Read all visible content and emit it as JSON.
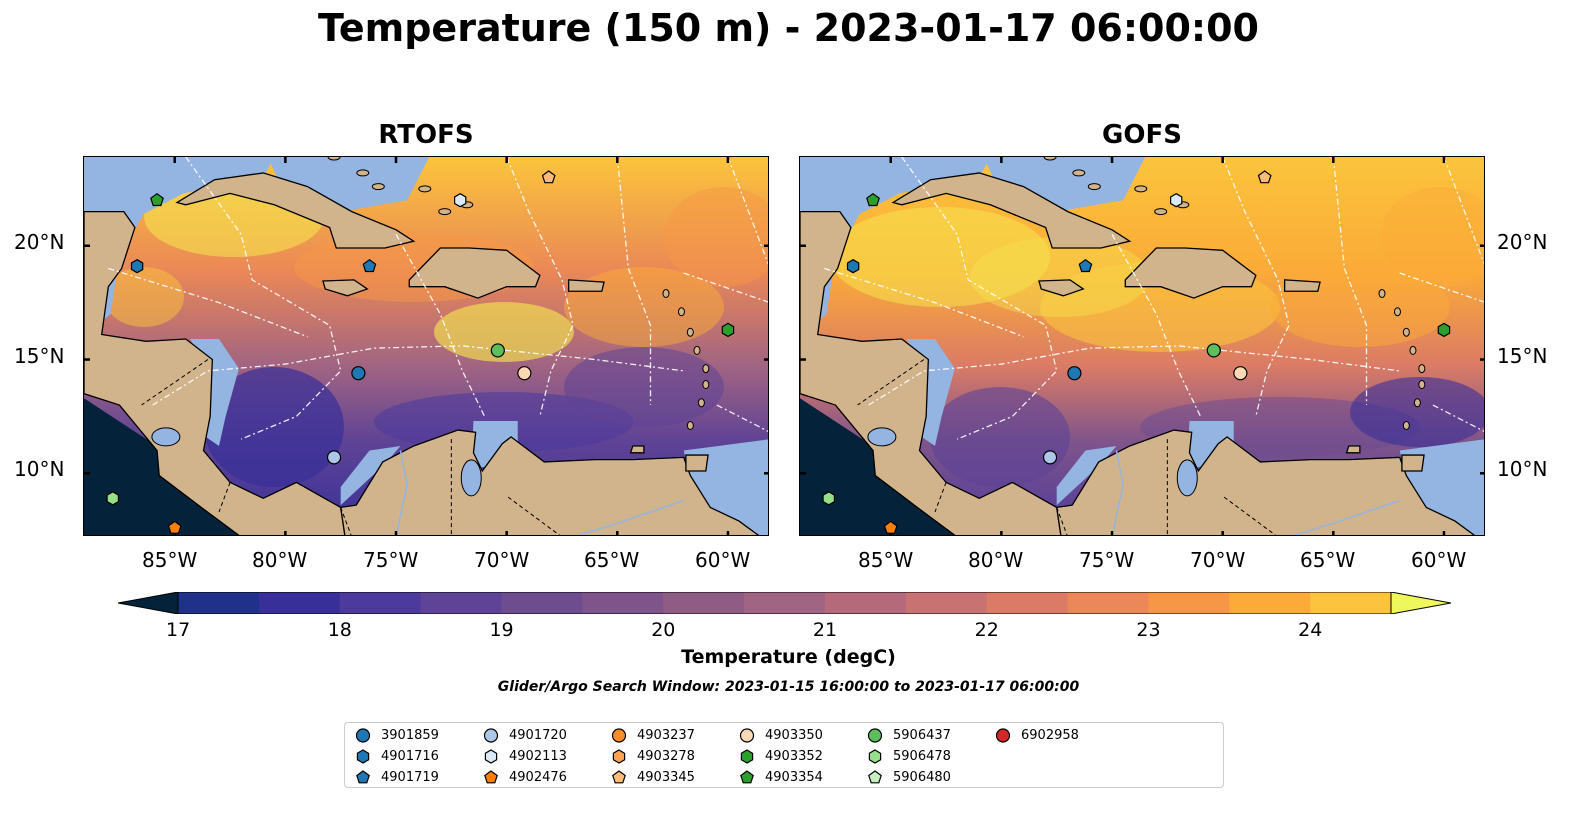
{
  "figure": {
    "title": "Temperature (150 m) - 2023-01-17 06:00:00",
    "panels": [
      {
        "title": "RTOFS"
      },
      {
        "title": "GOFS"
      }
    ],
    "lon_ticks": [
      "85°W",
      "80°W",
      "75°W",
      "70°W",
      "65°W",
      "60°W"
    ],
    "lat_ticks": [
      "20°N",
      "15°N",
      "10°N"
    ],
    "colorbar": {
      "label": "Temperature (degC)",
      "tick_labels": [
        "17",
        "18",
        "19",
        "20",
        "21",
        "22",
        "23",
        "24"
      ],
      "min": 17,
      "max": 24.5,
      "step": 0.5,
      "extend": "both",
      "colormap": "thermal",
      "colors": [
        "#04233a",
        "#0e2b5c",
        "#1f3189",
        "#382f99",
        "#4d3a9d",
        "#5e4396",
        "#6e4c90",
        "#7e548b",
        "#8f5c86",
        "#a16482",
        "#b56a7b",
        "#c97272",
        "#da7b66",
        "#ea8857",
        "#f59746",
        "#fbab38",
        "#fbc43c",
        "#f5e34e",
        "#eef85c"
      ],
      "extend_low_color": "#04233a",
      "extend_high_color": "#eef85c"
    },
    "search_window": "Glider/Argo Search Window: 2023-01-15 16:00:00 to 2023-01-17 06:00:00",
    "map_colors": {
      "land": "#d1b48c",
      "shelf_water": "#94b4e1",
      "coast": "#000000",
      "eez_lines": "#ffffff"
    },
    "legend": [
      {
        "id": "3901859",
        "marker": "circle",
        "color": "#1f77b4"
      },
      {
        "id": "4901716",
        "marker": "hexagon",
        "color": "#1f77b4"
      },
      {
        "id": "4901719",
        "marker": "pentagon",
        "color": "#1f77b4"
      },
      {
        "id": "4901720",
        "marker": "circle",
        "color": "#aec7e8"
      },
      {
        "id": "4902113",
        "marker": "hexagon",
        "color": "#dbe8f5"
      },
      {
        "id": "4902476",
        "marker": "pentagon",
        "color": "#ff7f0e"
      },
      {
        "id": "4903237",
        "marker": "circle",
        "color": "#ff8c2a"
      },
      {
        "id": "4903278",
        "marker": "hexagon",
        "color": "#ffa552"
      },
      {
        "id": "4903345",
        "marker": "pentagon",
        "color": "#ffbb78"
      },
      {
        "id": "4903350",
        "marker": "circle",
        "color": "#ffd8b5"
      },
      {
        "id": "4903352",
        "marker": "hexagon",
        "color": "#2ca02c"
      },
      {
        "id": "4903354",
        "marker": "pentagon",
        "color": "#2ca02c"
      },
      {
        "id": "5906437",
        "marker": "circle",
        "color": "#5cbf5c"
      },
      {
        "id": "5906478",
        "marker": "hexagon",
        "color": "#98df8a"
      },
      {
        "id": "5906480",
        "marker": "pentagon",
        "color": "#c7efc0"
      },
      {
        "id": "6902958",
        "marker": "circle",
        "color": "#d62728"
      }
    ],
    "floats": [
      {
        "id": "4903354",
        "lon": -85.8,
        "lat": 22.0
      },
      {
        "id": "4901716",
        "lon": -86.7,
        "lat": 19.1
      },
      {
        "id": "4901719",
        "lon": -76.2,
        "lat": 19.1
      },
      {
        "id": "4902113",
        "lon": -72.1,
        "lat": 22.0
      },
      {
        "id": "4903345",
        "lon": -68.1,
        "lat": 23.0
      },
      {
        "id": "4903352",
        "lon": -60.0,
        "lat": 16.3
      },
      {
        "id": "5906437",
        "lon": -70.4,
        "lat": 15.4
      },
      {
        "id": "4903350",
        "lon": -69.2,
        "lat": 14.4
      },
      {
        "id": "3901859",
        "lon": -76.7,
        "lat": 14.4
      },
      {
        "id": "4901720",
        "lon": -77.8,
        "lat": 10.7
      },
      {
        "id": "5906478",
        "lon": -87.8,
        "lat": 8.9
      },
      {
        "id": "4902476",
        "lon": -85.0,
        "lat": 7.6
      }
    ]
  }
}
